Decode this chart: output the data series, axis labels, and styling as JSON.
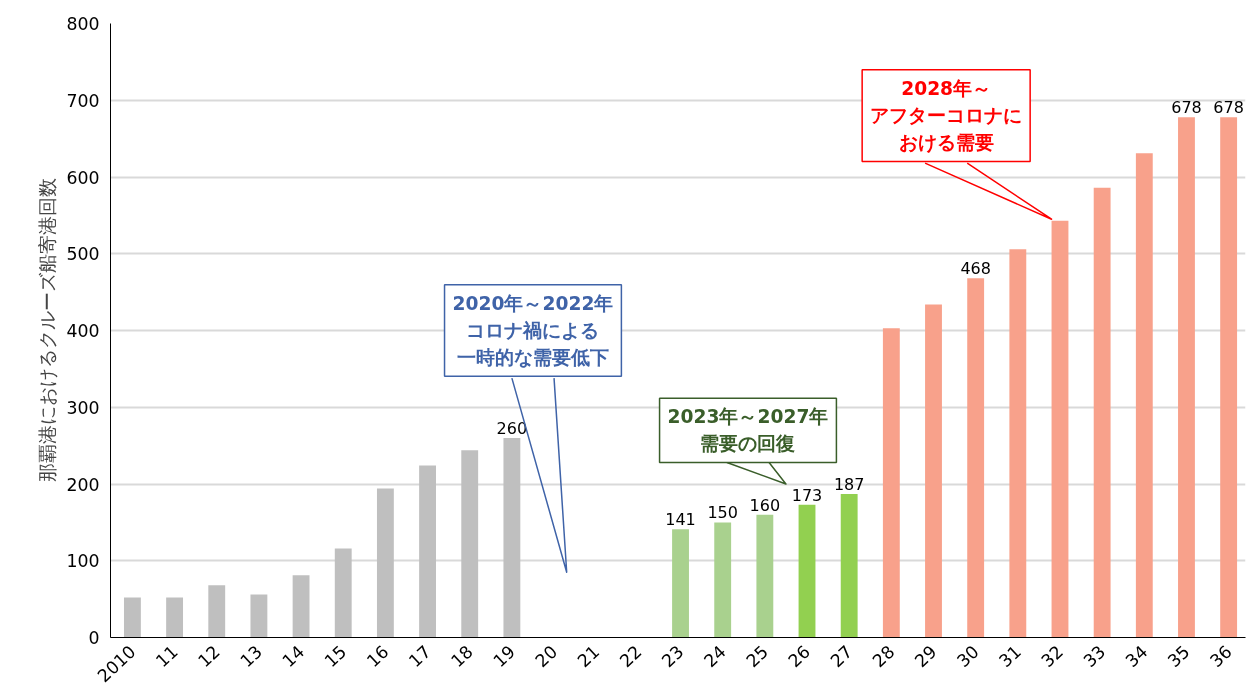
{
  "chart_data": {
    "type": "bar",
    "ylabel": "那覇港におけるクルーズ船寄港回数",
    "categories": [
      "2010",
      "11",
      "12",
      "13",
      "14",
      "15",
      "16",
      "17",
      "18",
      "19",
      "20",
      "21",
      "22",
      "23",
      "24",
      "25",
      "26",
      "27",
      "28",
      "29",
      "30",
      "31",
      "32",
      "33",
      "34",
      "35",
      "36"
    ],
    "values": [
      52,
      52,
      68,
      56,
      81,
      116,
      194,
      224,
      244,
      260,
      null,
      null,
      null,
      141,
      150,
      160,
      173,
      187,
      403,
      434,
      468,
      506,
      543,
      586,
      631,
      678,
      678
    ],
    "colors": [
      "#bfbfbf",
      "#bfbfbf",
      "#bfbfbf",
      "#bfbfbf",
      "#bfbfbf",
      "#bfbfbf",
      "#bfbfbf",
      "#bfbfbf",
      "#bfbfbf",
      "#bfbfbf",
      "#bfbfbf",
      "#bfbfbf",
      "#bfbfbf",
      "#a9d18e",
      "#a9d18e",
      "#a9d18e",
      "#92d050",
      "#92d050",
      "#f8a18b",
      "#f8a18b",
      "#f8a18b",
      "#f8a18b",
      "#f8a18b",
      "#f8a18b",
      "#f8a18b",
      "#f8a18b",
      "#f8a18b"
    ],
    "value_labels": [
      null,
      null,
      null,
      null,
      null,
      null,
      null,
      null,
      null,
      "260",
      null,
      null,
      null,
      "141",
      "150",
      "160",
      "173",
      "187",
      null,
      null,
      "468",
      null,
      null,
      null,
      null,
      "678",
      "678"
    ],
    "ylim": [
      0,
      800
    ],
    "yticks": [
      0,
      100,
      200,
      300,
      400,
      500,
      600,
      700,
      800
    ],
    "grid": "y",
    "annotations": [
      "2020年～2022年コロナ禍による一時的な需要低下",
      "2023年～2027年需要の回復",
      "2028年～アフターコロナにおける需要"
    ]
  }
}
